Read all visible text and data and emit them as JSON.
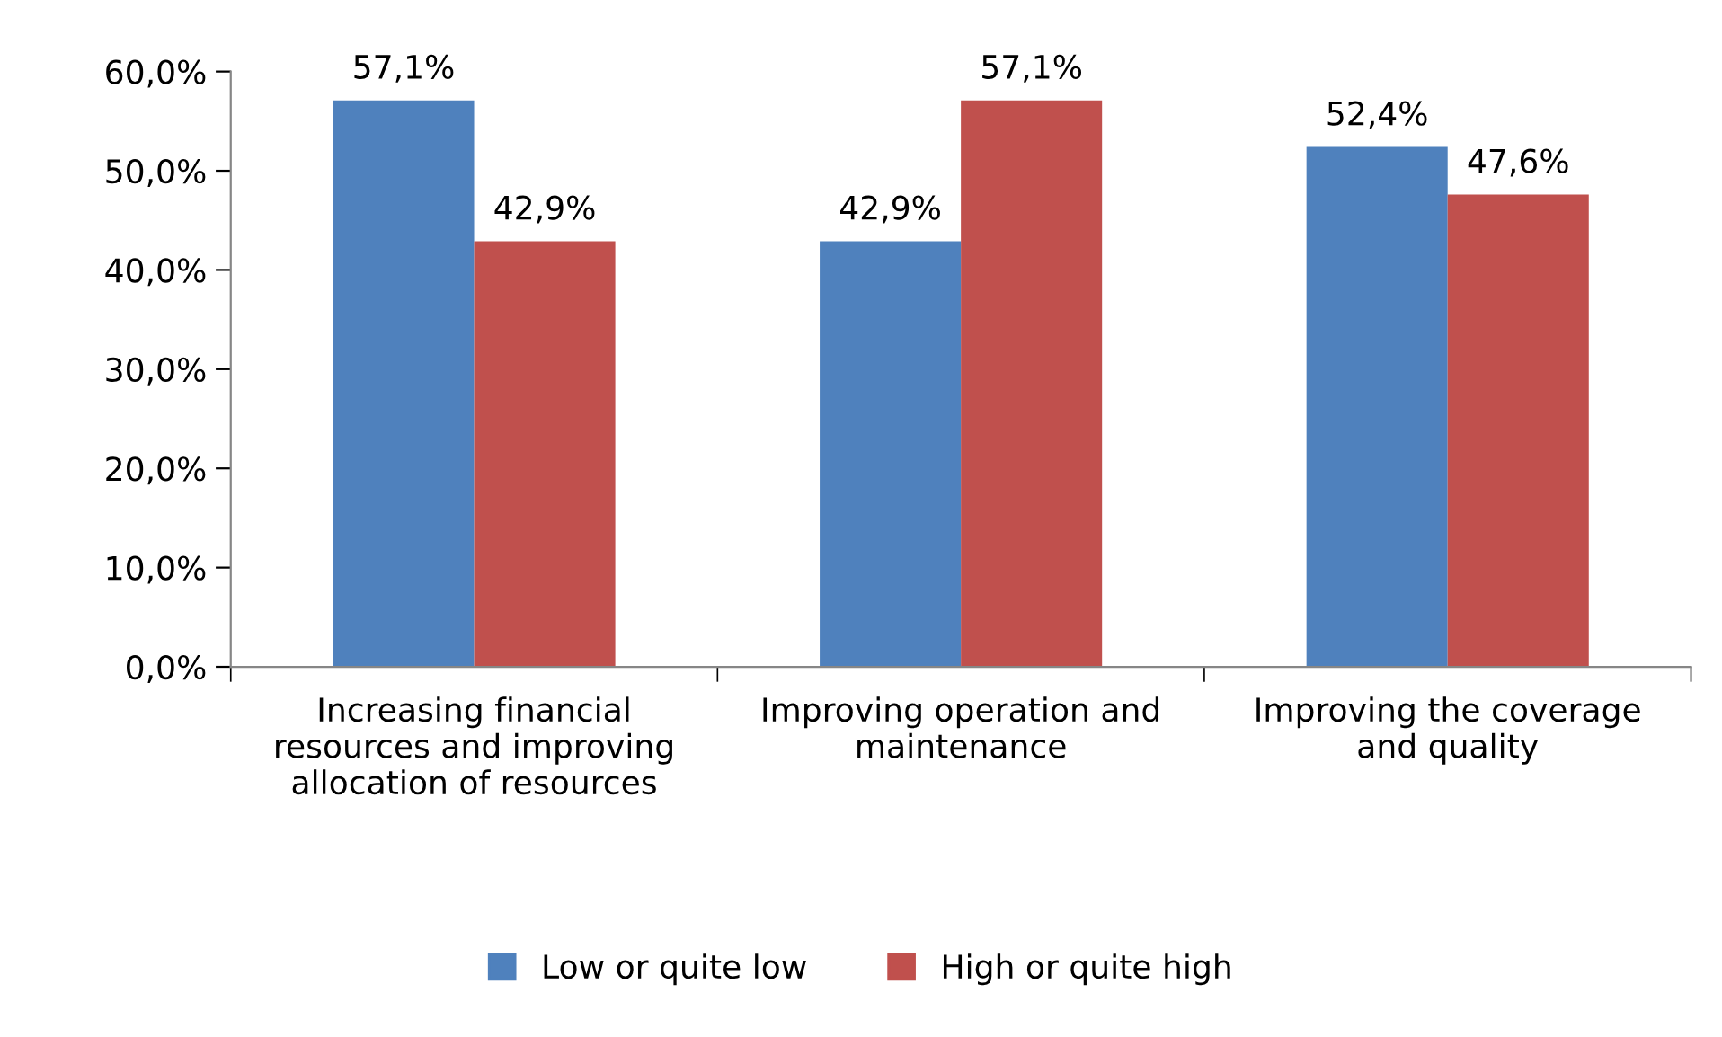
{
  "chart_data": {
    "type": "bar",
    "categories": [
      "Increasing financial\nresources and improving\nallocation of resources",
      "Improving operation and\nmaintenance",
      "Improving the coverage\nand quality"
    ],
    "series": [
      {
        "name": "Low or quite low",
        "color": "#4f81bd",
        "values": [
          57.1,
          42.9,
          52.4
        ],
        "value_labels": [
          "57,1%",
          "42,9%",
          "52,4%"
        ]
      },
      {
        "name": "High or quite high",
        "color": "#c0504d",
        "values": [
          42.9,
          57.1,
          47.6
        ],
        "value_labels": [
          "42,9%",
          "57,1%",
          "47,6%"
        ]
      }
    ],
    "ylim": [
      0,
      60
    ],
    "yticks": [
      {
        "value": 0,
        "label": "0,0%"
      },
      {
        "value": 10,
        "label": "10,0%"
      },
      {
        "value": 20,
        "label": "20,0%"
      },
      {
        "value": 30,
        "label": "30,0%"
      },
      {
        "value": 40,
        "label": "40,0%"
      },
      {
        "value": 50,
        "label": "50,0%"
      },
      {
        "value": 60,
        "label": "60,0%"
      }
    ],
    "grid": false,
    "legend": "bottom"
  }
}
